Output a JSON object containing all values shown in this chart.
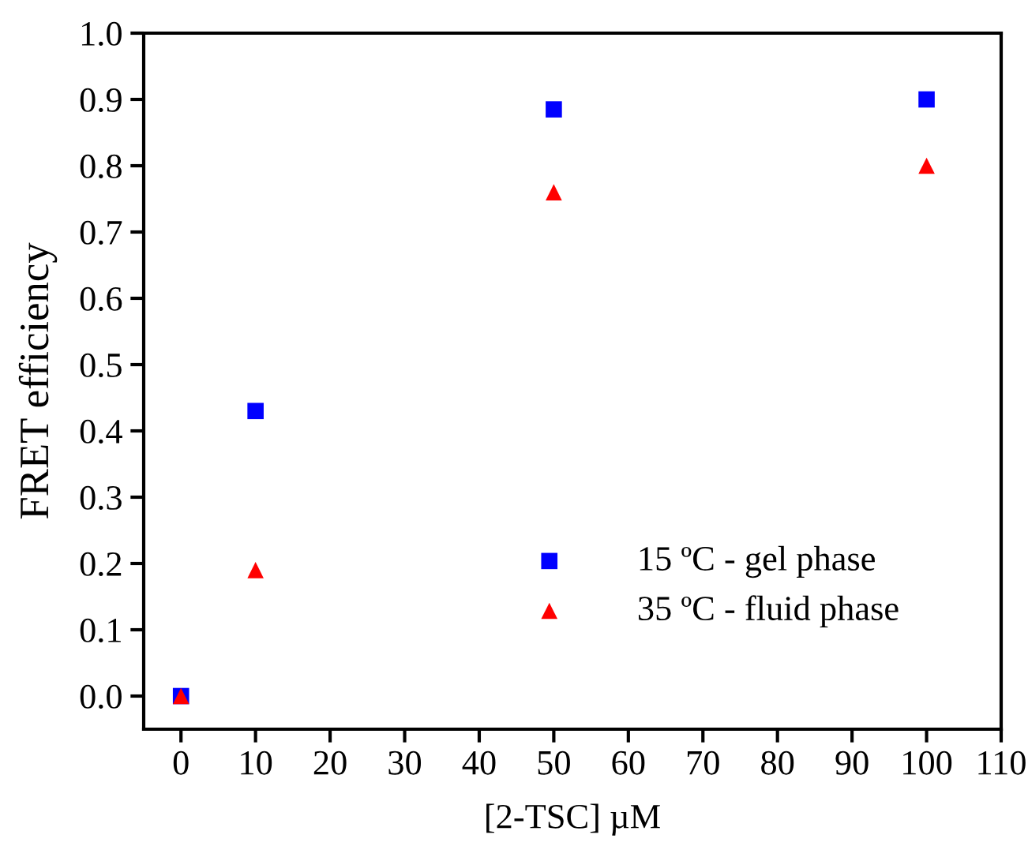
{
  "chart_data": {
    "type": "scatter",
    "xlabel": "[2-TSC] µM",
    "ylabel": "FRET efficiency",
    "x": [
      0,
      10,
      50,
      100
    ],
    "series": [
      {
        "name": "15 ºC - gel phase",
        "color": "#0000ff",
        "marker": "square",
        "values": [
          0,
          0.43,
          0.885,
          0.9
        ]
      },
      {
        "name": "35 ºC - fluid phase",
        "color": "#ff0000",
        "marker": "triangle",
        "values": [
          0,
          0.19,
          0.76,
          0.8
        ]
      }
    ],
    "xlim": [
      -5,
      110
    ],
    "xticks": [
      0,
      10,
      20,
      30,
      40,
      50,
      60,
      70,
      80,
      90,
      100,
      110
    ],
    "ylim": [
      -0.05,
      1.0
    ],
    "yticks": [
      {
        "value": 0,
        "label": "0.0"
      },
      0.1,
      0.2,
      0.3,
      0.4,
      0.5,
      0.6,
      0.7,
      0.8,
      0.9,
      {
        "value": 1,
        "label": "1.0"
      }
    ],
    "grid": false,
    "legend": "bottom right"
  }
}
